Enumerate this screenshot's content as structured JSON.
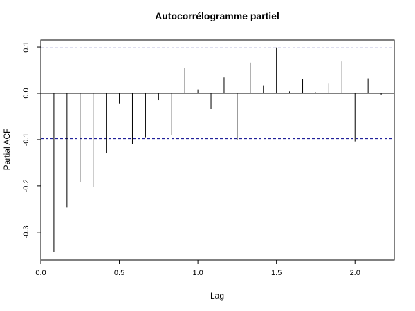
{
  "chart_data": {
    "type": "bar",
    "title": "Autocorrélogramme partiel",
    "xlabel": "Lag",
    "ylabel": "Partial ACF",
    "xlim": [
      0.0,
      2.25
    ],
    "ylim": [
      -0.36,
      0.115
    ],
    "x_ticks": [
      0.0,
      0.5,
      1.0,
      1.5,
      2.0
    ],
    "x_tick_labels": [
      "0.0",
      "0.5",
      "1.0",
      "1.5",
      "2.0"
    ],
    "y_ticks": [
      -0.3,
      -0.2,
      -0.1,
      0.0,
      0.1
    ],
    "y_tick_labels": [
      "-0.3",
      "-0.2",
      "-0.1",
      "0.0",
      "0.1"
    ],
    "confidence_bound": 0.098,
    "lags": [
      0.0833,
      0.1667,
      0.25,
      0.3333,
      0.4167,
      0.5,
      0.5833,
      0.6667,
      0.75,
      0.8333,
      0.9167,
      1.0,
      1.0833,
      1.1667,
      1.25,
      1.3333,
      1.4167,
      1.5,
      1.5833,
      1.6667,
      1.75,
      1.8333,
      1.9167,
      2.0,
      2.0833,
      2.1667
    ],
    "values": [
      -0.342,
      -0.247,
      -0.192,
      -0.202,
      -0.13,
      -0.022,
      -0.11,
      -0.095,
      -0.015,
      -0.091,
      0.054,
      0.008,
      -0.033,
      0.034,
      -0.1,
      0.066,
      0.017,
      0.099,
      0.004,
      0.03,
      0.002,
      0.022,
      0.07,
      -0.104,
      0.032,
      -0.004
    ],
    "colors": {
      "bars": "#000000",
      "bounds": "#00008b",
      "zero_line": "#000000",
      "frame": "#000000"
    }
  }
}
